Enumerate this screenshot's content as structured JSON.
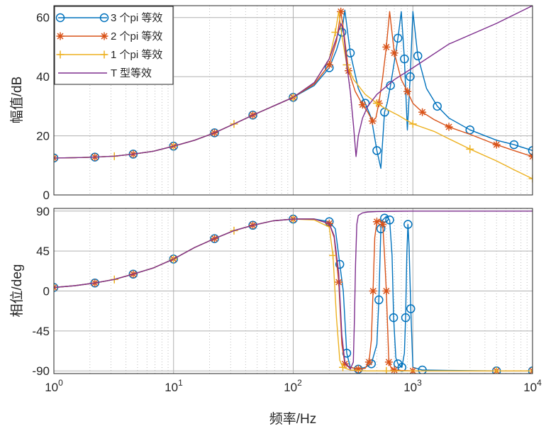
{
  "chart_data": {
    "type": "line",
    "title": "",
    "xlabel": "频率/Hz",
    "xscale": "log",
    "xlim": [
      1,
      10000
    ],
    "x_ticks": [
      {
        "base": "10",
        "exp": "0"
      },
      {
        "base": "10",
        "exp": "1"
      },
      {
        "base": "10",
        "exp": "2"
      },
      {
        "base": "10",
        "exp": "3"
      },
      {
        "base": "10",
        "exp": "4"
      }
    ],
    "grid": true,
    "legend_position": "top-left",
    "panels": [
      {
        "id": "magnitude",
        "ylabel": "幅值/dB",
        "ylim": [
          0,
          64
        ],
        "y_ticks": [
          "0",
          "20",
          "40",
          "60"
        ],
        "series": [
          {
            "name": "3 个pi 等效",
            "color": "#0072BD",
            "marker": "circle",
            "x": [
              1,
              1.5,
              2.2,
              3.2,
              4.6,
              6.8,
              10,
              15,
              22,
              32,
              46,
              68,
              100,
              150,
              200,
              230,
              255,
              270,
              300,
              350,
              400,
              450,
              500,
              540,
              580,
              610,
              650,
              700,
              750,
              800,
              850,
              900,
              950,
              1000,
              1100,
              1300,
              1600,
              2000,
              3000,
              5000,
              7000,
              10000
            ],
            "y": [
              12.5,
              12.6,
              12.8,
              13.1,
              13.8,
              14.8,
              16.5,
              18.5,
              21,
              24,
              27,
              30,
              33,
              37,
              43,
              49,
              55,
              62.5,
              48,
              36,
              31,
              26,
              15,
              9,
              28,
              31,
              37,
              45,
              53,
              62,
              46,
              22,
              40,
              62,
              47,
              36,
              30,
              26,
              22,
              18.5,
              17,
              15
            ]
          },
          {
            "name": "2 个pi 等效",
            "color": "#D95319",
            "marker": "star",
            "x": [
              1,
              1.5,
              2.2,
              3.2,
              4.6,
              6.8,
              10,
              15,
              22,
              32,
              46,
              68,
              100,
              150,
              200,
              230,
              250,
              265,
              290,
              330,
              380,
              420,
              460,
              490,
              520,
              560,
              600,
              640,
              700,
              800,
              900,
              1000,
              1200,
              1500,
              2000,
              3000,
              5000,
              7000,
              10000
            ],
            "y": [
              12.5,
              12.6,
              12.8,
              13.1,
              13.8,
              14.8,
              16.5,
              18.5,
              21,
              24,
              27,
              30,
              33,
              37.5,
              44,
              52,
              62,
              55,
              42,
              35,
              30.5,
              28,
              25,
              26,
              31,
              40,
              50,
              62,
              48,
              39,
              35,
              31,
              28,
              25.5,
              23,
              20.5,
              17,
              15,
              13
            ]
          },
          {
            "name": "1 个pi 等效",
            "color": "#EDB120",
            "marker": "plus",
            "x": [
              1,
              1.5,
              2.2,
              3.2,
              4.6,
              6.8,
              10,
              15,
              22,
              32,
              46,
              68,
              100,
              150,
              200,
              225,
              240,
              255,
              280,
              320,
              400,
              500,
              600,
              750,
              1000,
              1500,
              2000,
              3000,
              5000,
              7000,
              10000
            ],
            "y": [
              12.5,
              12.6,
              12.8,
              13.1,
              13.8,
              14.8,
              16.5,
              18.5,
              21,
              24,
              27,
              30,
              33,
              38,
              46,
              55,
              62,
              54,
              44,
              39,
              34,
              31,
              29,
              27,
              24,
              21.5,
              19,
              15.5,
              11.5,
              8.5,
              5.5
            ]
          },
          {
            "name": "T 型等效",
            "color": "#7E2F8E",
            "marker": "none",
            "x": [
              1,
              1.5,
              2.2,
              3.2,
              4.6,
              6.8,
              10,
              15,
              22,
              32,
              46,
              68,
              100,
              150,
              200,
              230,
              250,
              262,
              280,
              300,
              320,
              335,
              350,
              380,
              420,
              500,
              700,
              1000,
              2000,
              5000,
              10000
            ],
            "y": [
              12.5,
              12.6,
              12.8,
              13.1,
              13.8,
              14.8,
              16.5,
              18.5,
              21,
              24,
              27,
              30,
              33,
              38,
              46,
              53,
              58,
              56,
              44,
              35,
              23,
              13,
              20,
              26,
              30,
              34,
              39,
              43,
              51,
              58,
              64
            ]
          }
        ]
      },
      {
        "id": "phase",
        "ylabel": "相位/deg",
        "ylim": [
          -93,
          93
        ],
        "y_ticks": [
          "-90",
          "-45",
          "0",
          "45",
          "90"
        ],
        "series": [
          {
            "name": "3 个pi 等效",
            "color": "#0072BD",
            "marker": "circle",
            "x": [
              1,
              1.5,
              2.2,
              3.2,
              4.6,
              6.8,
              10,
              15,
              22,
              32,
              46,
              68,
              100,
              150,
              200,
              225,
              245,
              262,
              280,
              300,
              350,
              400,
              450,
              500,
              520,
              530,
              540,
              560,
              580,
              600,
              640,
              670,
              690,
              720,
              750,
              780,
              810,
              850,
              870,
              890,
              910,
              930,
              960,
              1000,
              1200,
              2000,
              5000,
              10000
            ],
            "y": [
              4,
              6,
              9,
              13,
              19,
              26,
              36,
              49,
              59,
              68,
              74,
              79,
              81,
              81,
              78,
              70,
              30,
              0,
              -70,
              -86,
              -88,
              -86,
              -82,
              -60,
              -10,
              30,
              70,
              80,
              82,
              84,
              80,
              40,
              -30,
              -75,
              -82,
              -84,
              -86,
              -70,
              -30,
              40,
              75,
              50,
              -20,
              -86,
              -89,
              -89.5,
              -90,
              -90
            ]
          },
          {
            "name": "2 个pi 等效",
            "color": "#D95319",
            "marker": "star",
            "x": [
              1,
              1.5,
              2.2,
              3.2,
              4.6,
              6.8,
              10,
              15,
              22,
              32,
              46,
              68,
              100,
              150,
              200,
              220,
              240,
              255,
              270,
              300,
              350,
              400,
              430,
              450,
              465,
              480,
              500,
              530,
              560,
              580,
              600,
              615,
              630,
              660,
              700,
              800,
              1000,
              2000,
              5000,
              10000
            ],
            "y": [
              4,
              6,
              9,
              13,
              19,
              26,
              36,
              49,
              59,
              68,
              74,
              79,
              81,
              81,
              76,
              60,
              10,
              -60,
              -82,
              -86,
              -88,
              -87,
              -80,
              -55,
              0,
              60,
              78,
              80,
              75,
              40,
              0,
              -40,
              -80,
              -87,
              -89,
              -89.5,
              -90,
              -90,
              -90,
              -90
            ]
          },
          {
            "name": "1 个pi 等效",
            "color": "#EDB120",
            "marker": "plus",
            "x": [
              1,
              1.5,
              2.2,
              3.2,
              4.6,
              6.8,
              10,
              15,
              22,
              32,
              46,
              68,
              100,
              150,
              200,
              215,
              230,
              245,
              260,
              300,
              400,
              600,
              1000,
              2000,
              5000,
              10000
            ],
            "y": [
              4,
              6,
              9,
              13,
              19,
              26,
              36,
              49,
              59,
              68,
              74,
              79,
              81,
              80,
              72,
              40,
              -30,
              -78,
              -86,
              -89,
              -90,
              -90,
              -90,
              -90,
              -90,
              -90
            ]
          },
          {
            "name": "T 型等效",
            "color": "#7E2F8E",
            "marker": "none",
            "x": [
              1,
              1.5,
              2.2,
              3.2,
              4.6,
              6.8,
              10,
              15,
              22,
              32,
              46,
              68,
              100,
              150,
              200,
              220,
              240,
              255,
              270,
              300,
              318,
              325,
              332,
              340,
              350,
              380,
              420,
              500,
              700,
              1000,
              2000,
              5000,
              10000
            ],
            "y": [
              4,
              6,
              9,
              13,
              19,
              26,
              36,
              49,
              59,
              68,
              74,
              79,
              81,
              81,
              76,
              62,
              20,
              -50,
              -80,
              -88,
              -80,
              -30,
              30,
              75,
              85,
              88,
              89,
              89.5,
              89.8,
              90,
              90,
              90,
              90
            ]
          }
        ]
      }
    ]
  }
}
